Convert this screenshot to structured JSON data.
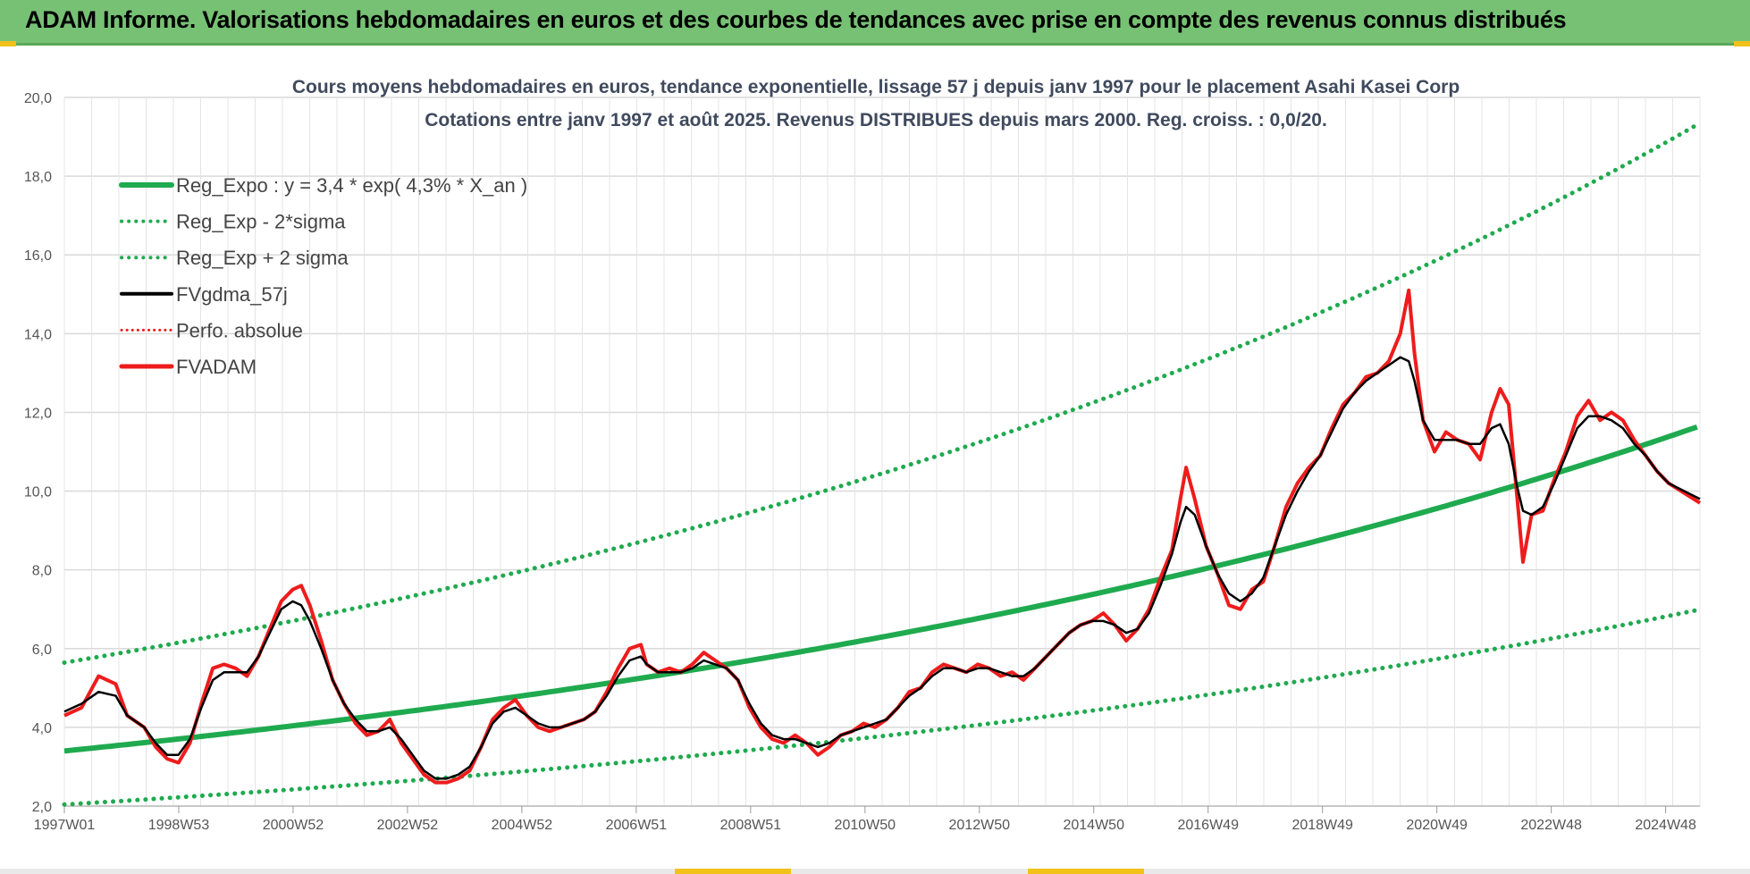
{
  "header": {
    "title": "ADAM Informe. Valorisations hebdomadaires en euros et des courbes de tendances avec prise en compte des revenus connus distribués"
  },
  "colors": {
    "header_bg": "#77c175",
    "green": "#1faa4f",
    "red": "#ee1c1c",
    "black": "#000000",
    "accent": "#f2c21b"
  },
  "chart_data": {
    "type": "line",
    "title_line1": "Cours moyens hebdomadaires en euros, tendance exponentielle, lissage 57 j depuis janv 1997 pour le placement Asahi Kasei Corp",
    "title_line2": "Cotations entre janv 1997 et août 2025.  Revenus DISTRIBUES depuis mars 2000. Reg. croiss. : 0,0/20.",
    "x_ticks": [
      "1997W01",
      "1998W53",
      "2000W52",
      "2002W52",
      "2004W52",
      "2006W51",
      "2008W51",
      "2010W50",
      "2012W50",
      "2014W50",
      "2016W49",
      "2018W49",
      "2020W49",
      "2022W48",
      "2024W48"
    ],
    "x_range": [
      1997.0,
      2025.65
    ],
    "y_ticks": [
      "2,0",
      "4,0",
      "6,0",
      "8,0",
      "10,0",
      "12,0",
      "14,0",
      "16,0",
      "18,0",
      "20,0"
    ],
    "ylim": [
      2,
      20
    ],
    "grid": true,
    "legend_position": "top-left",
    "legend": [
      {
        "label": "Reg_Expo : y = 3,4 * exp( 4,3% *  X_an )",
        "style": "solid-green"
      },
      {
        "label": "Reg_Exp - 2*sigma",
        "style": "dotted-green"
      },
      {
        "label": "Reg_Exp + 2 sigma",
        "style": "dotted-green"
      },
      {
        "label": "FVgdma_57j",
        "style": "solid-black"
      },
      {
        "label": "Perfo. absolue",
        "style": "dotted-red"
      },
      {
        "label": "FVADAM",
        "style": "solid-red"
      }
    ],
    "trend": {
      "a": 3.4,
      "b": 0.043,
      "lower_factor": 0.6,
      "upper_factor": 1.66
    },
    "series": [
      {
        "name": "FVADAM",
        "points": [
          [
            1997.0,
            4.3
          ],
          [
            1997.3,
            4.5
          ],
          [
            1997.6,
            5.3
          ],
          [
            1997.9,
            5.1
          ],
          [
            1998.1,
            4.3
          ],
          [
            1998.4,
            4.0
          ],
          [
            1998.6,
            3.5
          ],
          [
            1998.8,
            3.2
          ],
          [
            1999.0,
            3.1
          ],
          [
            1999.2,
            3.6
          ],
          [
            1999.4,
            4.6
          ],
          [
            1999.6,
            5.5
          ],
          [
            1999.8,
            5.6
          ],
          [
            2000.0,
            5.5
          ],
          [
            2000.2,
            5.3
          ],
          [
            2000.4,
            5.8
          ],
          [
            2000.6,
            6.5
          ],
          [
            2000.8,
            7.2
          ],
          [
            2001.0,
            7.5
          ],
          [
            2001.15,
            7.6
          ],
          [
            2001.3,
            7.1
          ],
          [
            2001.5,
            6.2
          ],
          [
            2001.7,
            5.2
          ],
          [
            2001.9,
            4.6
          ],
          [
            2002.1,
            4.1
          ],
          [
            2002.3,
            3.8
          ],
          [
            2002.5,
            3.9
          ],
          [
            2002.7,
            4.2
          ],
          [
            2002.9,
            3.6
          ],
          [
            2003.1,
            3.2
          ],
          [
            2003.3,
            2.8
          ],
          [
            2003.5,
            2.6
          ],
          [
            2003.7,
            2.6
          ],
          [
            2003.9,
            2.7
          ],
          [
            2004.1,
            2.9
          ],
          [
            2004.3,
            3.5
          ],
          [
            2004.5,
            4.2
          ],
          [
            2004.7,
            4.5
          ],
          [
            2004.9,
            4.7
          ],
          [
            2005.1,
            4.3
          ],
          [
            2005.3,
            4.0
          ],
          [
            2005.5,
            3.9
          ],
          [
            2005.7,
            4.0
          ],
          [
            2005.9,
            4.1
          ],
          [
            2006.1,
            4.2
          ],
          [
            2006.3,
            4.4
          ],
          [
            2006.5,
            4.9
          ],
          [
            2006.7,
            5.5
          ],
          [
            2006.9,
            6.0
          ],
          [
            2007.1,
            6.1
          ],
          [
            2007.2,
            5.6
          ],
          [
            2007.4,
            5.4
          ],
          [
            2007.6,
            5.5
          ],
          [
            2007.8,
            5.4
          ],
          [
            2008.0,
            5.6
          ],
          [
            2008.2,
            5.9
          ],
          [
            2008.4,
            5.7
          ],
          [
            2008.6,
            5.5
          ],
          [
            2008.8,
            5.2
          ],
          [
            2009.0,
            4.5
          ],
          [
            2009.2,
            4.0
          ],
          [
            2009.4,
            3.7
          ],
          [
            2009.6,
            3.6
          ],
          [
            2009.8,
            3.8
          ],
          [
            2010.0,
            3.6
          ],
          [
            2010.2,
            3.3
          ],
          [
            2010.4,
            3.5
          ],
          [
            2010.6,
            3.8
          ],
          [
            2010.8,
            3.9
          ],
          [
            2011.0,
            4.1
          ],
          [
            2011.2,
            4.0
          ],
          [
            2011.4,
            4.2
          ],
          [
            2011.6,
            4.5
          ],
          [
            2011.8,
            4.9
          ],
          [
            2012.0,
            5.0
          ],
          [
            2012.2,
            5.4
          ],
          [
            2012.4,
            5.6
          ],
          [
            2012.6,
            5.5
          ],
          [
            2012.8,
            5.4
          ],
          [
            2013.0,
            5.6
          ],
          [
            2013.2,
            5.5
          ],
          [
            2013.4,
            5.3
          ],
          [
            2013.6,
            5.4
          ],
          [
            2013.8,
            5.2
          ],
          [
            2014.0,
            5.5
          ],
          [
            2014.2,
            5.8
          ],
          [
            2014.4,
            6.1
          ],
          [
            2014.6,
            6.4
          ],
          [
            2014.8,
            6.6
          ],
          [
            2015.0,
            6.7
          ],
          [
            2015.2,
            6.9
          ],
          [
            2015.4,
            6.6
          ],
          [
            2015.6,
            6.2
          ],
          [
            2015.8,
            6.5
          ],
          [
            2016.0,
            7.0
          ],
          [
            2016.2,
            7.8
          ],
          [
            2016.4,
            8.5
          ],
          [
            2016.55,
            9.8
          ],
          [
            2016.65,
            10.6
          ],
          [
            2016.8,
            9.8
          ],
          [
            2017.0,
            8.6
          ],
          [
            2017.2,
            7.9
          ],
          [
            2017.4,
            7.1
          ],
          [
            2017.6,
            7.0
          ],
          [
            2017.8,
            7.5
          ],
          [
            2018.0,
            7.7
          ],
          [
            2018.2,
            8.6
          ],
          [
            2018.4,
            9.6
          ],
          [
            2018.6,
            10.2
          ],
          [
            2018.8,
            10.6
          ],
          [
            2019.0,
            10.9
          ],
          [
            2019.2,
            11.6
          ],
          [
            2019.4,
            12.2
          ],
          [
            2019.6,
            12.5
          ],
          [
            2019.8,
            12.9
          ],
          [
            2020.0,
            13.0
          ],
          [
            2020.2,
            13.3
          ],
          [
            2020.4,
            14.0
          ],
          [
            2020.55,
            15.1
          ],
          [
            2020.65,
            13.5
          ],
          [
            2020.8,
            11.8
          ],
          [
            2021.0,
            11.0
          ],
          [
            2021.2,
            11.5
          ],
          [
            2021.4,
            11.3
          ],
          [
            2021.6,
            11.2
          ],
          [
            2021.8,
            10.8
          ],
          [
            2022.0,
            12.0
          ],
          [
            2022.15,
            12.6
          ],
          [
            2022.3,
            12.2
          ],
          [
            2022.45,
            9.8
          ],
          [
            2022.55,
            8.2
          ],
          [
            2022.7,
            9.4
          ],
          [
            2022.9,
            9.5
          ],
          [
            2023.1,
            10.3
          ],
          [
            2023.3,
            11.0
          ],
          [
            2023.5,
            11.9
          ],
          [
            2023.7,
            12.3
          ],
          [
            2023.9,
            11.8
          ],
          [
            2024.1,
            12.0
          ],
          [
            2024.3,
            11.8
          ],
          [
            2024.5,
            11.3
          ],
          [
            2024.7,
            10.9
          ],
          [
            2024.9,
            10.5
          ],
          [
            2025.1,
            10.2
          ],
          [
            2025.65,
            9.7
          ]
        ]
      },
      {
        "name": "FVgdma_57j",
        "points": [
          [
            1997.0,
            4.4
          ],
          [
            1997.3,
            4.6
          ],
          [
            1997.6,
            4.9
          ],
          [
            1997.9,
            4.8
          ],
          [
            1998.1,
            4.3
          ],
          [
            1998.4,
            4.0
          ],
          [
            1998.6,
            3.6
          ],
          [
            1998.8,
            3.3
          ],
          [
            1999.0,
            3.3
          ],
          [
            1999.2,
            3.7
          ],
          [
            1999.4,
            4.5
          ],
          [
            1999.6,
            5.2
          ],
          [
            1999.8,
            5.4
          ],
          [
            2000.0,
            5.4
          ],
          [
            2000.2,
            5.4
          ],
          [
            2000.4,
            5.8
          ],
          [
            2000.6,
            6.4
          ],
          [
            2000.8,
            7.0
          ],
          [
            2001.0,
            7.2
          ],
          [
            2001.15,
            7.1
          ],
          [
            2001.3,
            6.7
          ],
          [
            2001.5,
            6.0
          ],
          [
            2001.7,
            5.2
          ],
          [
            2001.9,
            4.6
          ],
          [
            2002.1,
            4.2
          ],
          [
            2002.3,
            3.9
          ],
          [
            2002.5,
            3.9
          ],
          [
            2002.7,
            4.0
          ],
          [
            2002.9,
            3.7
          ],
          [
            2003.1,
            3.3
          ],
          [
            2003.3,
            2.9
          ],
          [
            2003.5,
            2.7
          ],
          [
            2003.7,
            2.7
          ],
          [
            2003.9,
            2.8
          ],
          [
            2004.1,
            3.0
          ],
          [
            2004.3,
            3.5
          ],
          [
            2004.5,
            4.1
          ],
          [
            2004.7,
            4.4
          ],
          [
            2004.9,
            4.5
          ],
          [
            2005.1,
            4.3
          ],
          [
            2005.3,
            4.1
          ],
          [
            2005.5,
            4.0
          ],
          [
            2005.7,
            4.0
          ],
          [
            2005.9,
            4.1
          ],
          [
            2006.1,
            4.2
          ],
          [
            2006.3,
            4.4
          ],
          [
            2006.5,
            4.8
          ],
          [
            2006.7,
            5.3
          ],
          [
            2006.9,
            5.7
          ],
          [
            2007.1,
            5.8
          ],
          [
            2007.2,
            5.6
          ],
          [
            2007.4,
            5.4
          ],
          [
            2007.6,
            5.4
          ],
          [
            2007.8,
            5.4
          ],
          [
            2008.0,
            5.5
          ],
          [
            2008.2,
            5.7
          ],
          [
            2008.4,
            5.6
          ],
          [
            2008.6,
            5.5
          ],
          [
            2008.8,
            5.2
          ],
          [
            2009.0,
            4.6
          ],
          [
            2009.2,
            4.1
          ],
          [
            2009.4,
            3.8
          ],
          [
            2009.6,
            3.7
          ],
          [
            2009.8,
            3.7
          ],
          [
            2010.0,
            3.6
          ],
          [
            2010.2,
            3.5
          ],
          [
            2010.4,
            3.6
          ],
          [
            2010.6,
            3.8
          ],
          [
            2010.8,
            3.9
          ],
          [
            2011.0,
            4.0
          ],
          [
            2011.2,
            4.1
          ],
          [
            2011.4,
            4.2
          ],
          [
            2011.6,
            4.5
          ],
          [
            2011.8,
            4.8
          ],
          [
            2012.0,
            5.0
          ],
          [
            2012.2,
            5.3
          ],
          [
            2012.4,
            5.5
          ],
          [
            2012.6,
            5.5
          ],
          [
            2012.8,
            5.4
          ],
          [
            2013.0,
            5.5
          ],
          [
            2013.2,
            5.5
          ],
          [
            2013.4,
            5.4
          ],
          [
            2013.6,
            5.3
          ],
          [
            2013.8,
            5.3
          ],
          [
            2014.0,
            5.5
          ],
          [
            2014.2,
            5.8
          ],
          [
            2014.4,
            6.1
          ],
          [
            2014.6,
            6.4
          ],
          [
            2014.8,
            6.6
          ],
          [
            2015.0,
            6.7
          ],
          [
            2015.2,
            6.7
          ],
          [
            2015.4,
            6.6
          ],
          [
            2015.6,
            6.4
          ],
          [
            2015.8,
            6.5
          ],
          [
            2016.0,
            6.9
          ],
          [
            2016.2,
            7.6
          ],
          [
            2016.4,
            8.4
          ],
          [
            2016.55,
            9.2
          ],
          [
            2016.65,
            9.6
          ],
          [
            2016.8,
            9.4
          ],
          [
            2017.0,
            8.6
          ],
          [
            2017.2,
            7.9
          ],
          [
            2017.4,
            7.4
          ],
          [
            2017.6,
            7.2
          ],
          [
            2017.8,
            7.4
          ],
          [
            2018.0,
            7.8
          ],
          [
            2018.2,
            8.6
          ],
          [
            2018.4,
            9.4
          ],
          [
            2018.6,
            10.0
          ],
          [
            2018.8,
            10.5
          ],
          [
            2019.0,
            10.9
          ],
          [
            2019.2,
            11.5
          ],
          [
            2019.4,
            12.1
          ],
          [
            2019.6,
            12.5
          ],
          [
            2019.8,
            12.8
          ],
          [
            2020.0,
            13.0
          ],
          [
            2020.2,
            13.2
          ],
          [
            2020.4,
            13.4
          ],
          [
            2020.55,
            13.3
          ],
          [
            2020.65,
            12.8
          ],
          [
            2020.8,
            11.8
          ],
          [
            2021.0,
            11.3
          ],
          [
            2021.2,
            11.3
          ],
          [
            2021.4,
            11.3
          ],
          [
            2021.6,
            11.2
          ],
          [
            2021.8,
            11.2
          ],
          [
            2022.0,
            11.6
          ],
          [
            2022.15,
            11.7
          ],
          [
            2022.3,
            11.2
          ],
          [
            2022.45,
            10.1
          ],
          [
            2022.55,
            9.5
          ],
          [
            2022.7,
            9.4
          ],
          [
            2022.9,
            9.6
          ],
          [
            2023.1,
            10.2
          ],
          [
            2023.3,
            10.9
          ],
          [
            2023.5,
            11.6
          ],
          [
            2023.7,
            11.9
          ],
          [
            2023.9,
            11.9
          ],
          [
            2024.1,
            11.8
          ],
          [
            2024.3,
            11.6
          ],
          [
            2024.5,
            11.2
          ],
          [
            2024.7,
            10.9
          ],
          [
            2024.9,
            10.5
          ],
          [
            2025.1,
            10.2
          ],
          [
            2025.65,
            9.8
          ]
        ]
      }
    ]
  }
}
